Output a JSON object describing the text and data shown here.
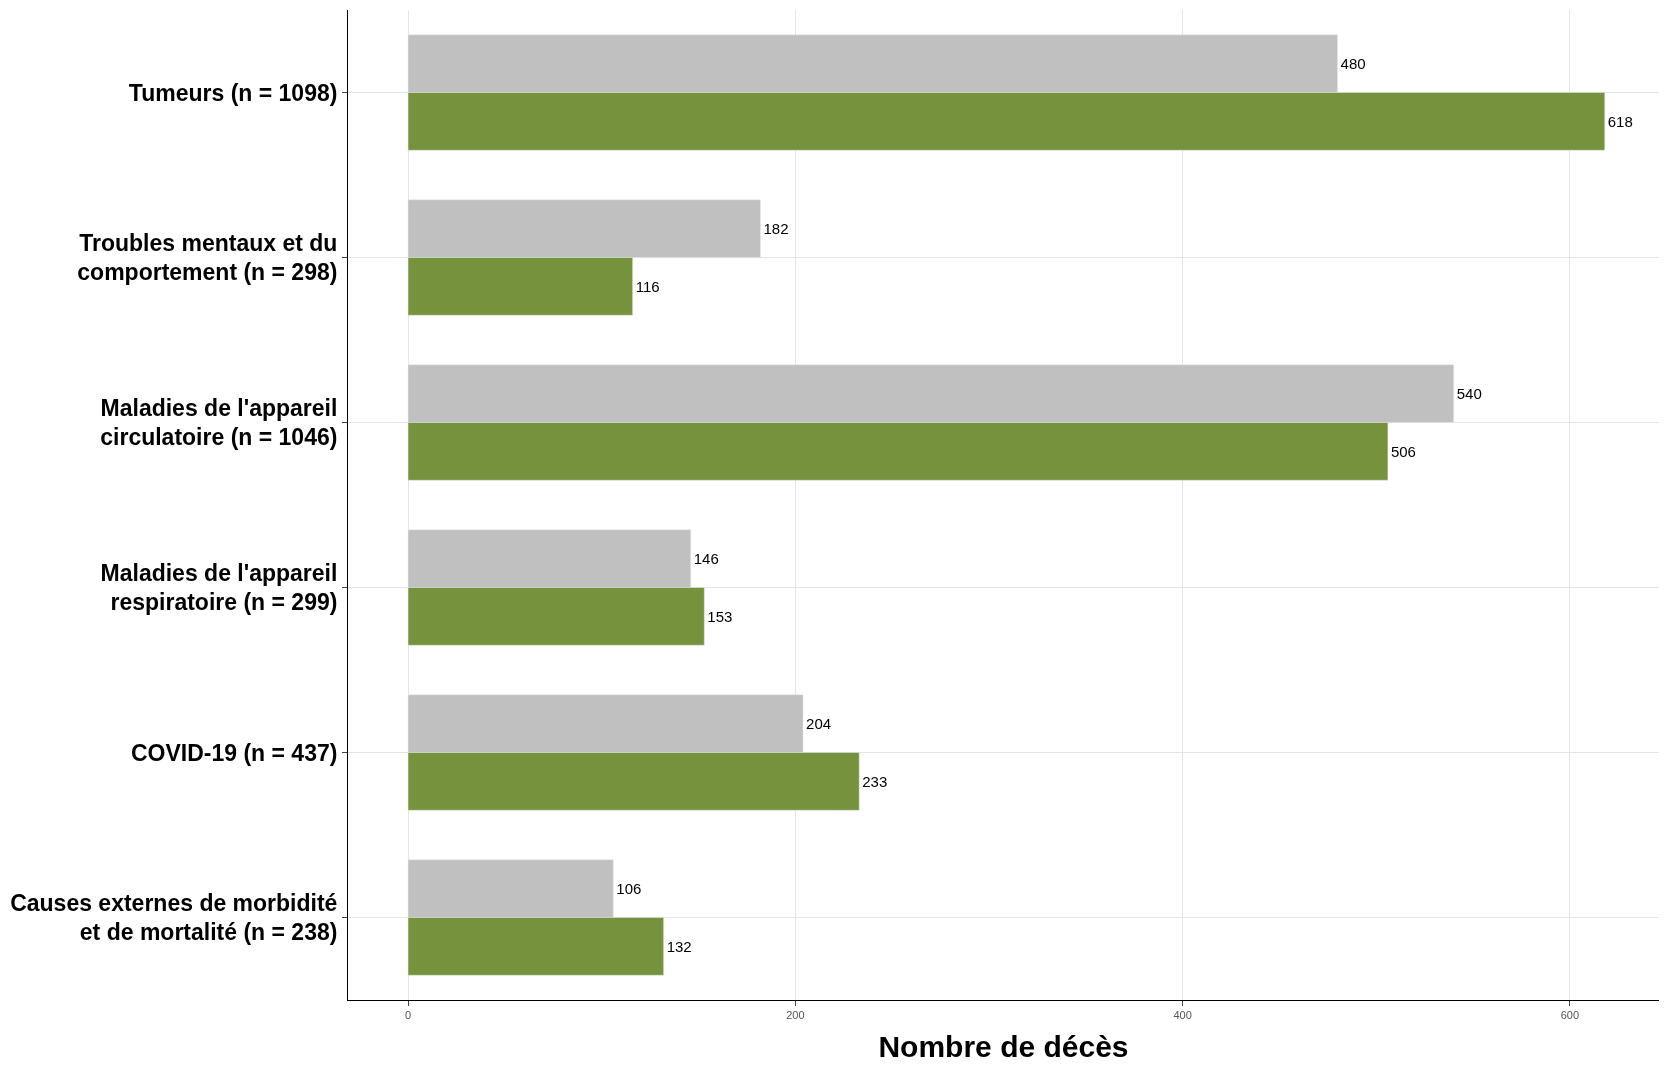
{
  "chart_data": {
    "type": "bar",
    "orientation": "horizontal",
    "xlabel": "Nombre de décès",
    "categories": [
      "Tumeurs (n = 1098)",
      "Troubles mentaux et du\ncomportement (n = 298)",
      "Maladies de l'appareil\ncirculatoire (n = 1046)",
      "Maladies de l'appareil\nrespiratoire (n = 299)",
      "COVID-19 (n = 437)",
      "Causes externes de morbidité\net de mortalité (n = 238)"
    ],
    "series": [
      {
        "color": "#c0c0c0",
        "values": [
          480,
          182,
          540,
          146,
          204,
          106
        ]
      },
      {
        "color": "#76923c",
        "values": [
          618,
          116,
          506,
          153,
          233,
          132
        ]
      }
    ],
    "xlim": [
      -31,
      646
    ],
    "xticks": [
      0,
      200,
      400,
      600
    ],
    "grid": true,
    "data_labels": true
  }
}
